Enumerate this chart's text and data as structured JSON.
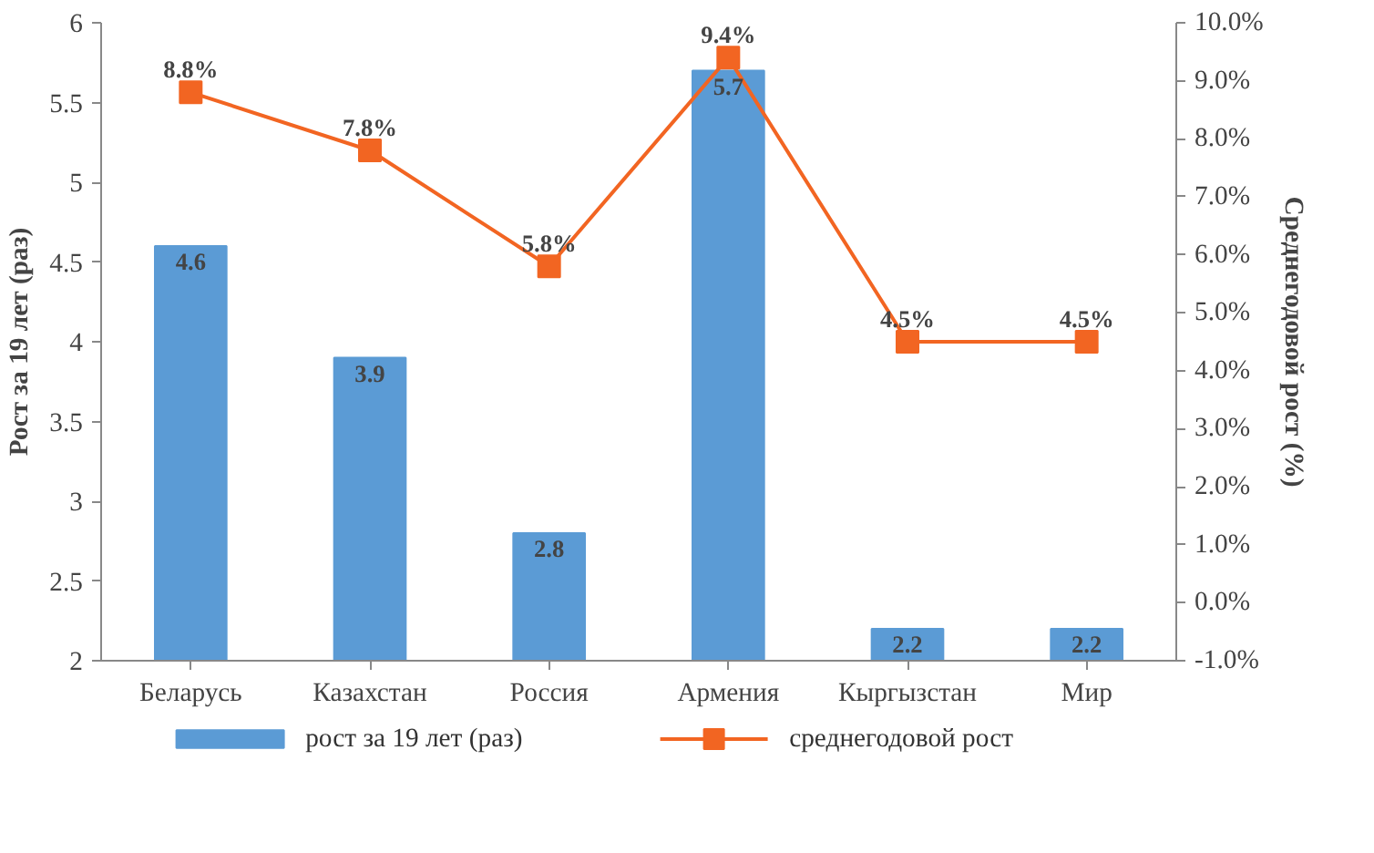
{
  "chart_data": {
    "type": "bar",
    "categories": [
      "Беларусь",
      "Казахстан",
      "Россия",
      "Армения",
      "Кыргызстан",
      "Мир"
    ],
    "ylabel": "Рост за 19 лет (раз)",
    "y2label": "Среднегодовой рост (%)",
    "ylim": [
      2,
      6
    ],
    "yticks": [
      2,
      2.5,
      3,
      3.5,
      4,
      4.5,
      5,
      5.5,
      6
    ],
    "y2lim": [
      -1,
      10
    ],
    "y2ticks": [
      {
        "value": -1,
        "label": "-1.0%"
      },
      {
        "value": 0,
        "label": "0.0%"
      },
      {
        "value": 1,
        "label": "1.0%"
      },
      {
        "value": 2,
        "label": "2.0%"
      },
      {
        "value": 3,
        "label": "3.0%"
      },
      {
        "value": 4,
        "label": "4.0%"
      },
      {
        "value": 5,
        "label": "5.0%"
      },
      {
        "value": 6,
        "label": "6.0%"
      },
      {
        "value": 7,
        "label": "7.0%"
      },
      {
        "value": 8,
        "label": "8.0%"
      },
      {
        "value": 9,
        "label": "9.0%"
      },
      {
        "value": 10,
        "label": "10.0%"
      }
    ],
    "series": [
      {
        "name": "рост за 19 лет (раз)",
        "color": "#5b9bd5",
        "values": [
          4.6,
          3.9,
          2.8,
          5.7,
          2.2,
          2.2
        ]
      },
      {
        "name": "среднегодовой рост",
        "type": "line",
        "axis": "y2",
        "color": "#f26522",
        "marker": "square",
        "values": [
          8.8,
          7.8,
          5.8,
          9.4,
          4.5,
          4.5
        ],
        "value_labels": [
          "8.8%",
          "7.8%",
          "5.8%",
          "9.4%",
          "4.5%",
          "4.5%"
        ]
      }
    ],
    "data_labels": true,
    "legend": "bottom",
    "grid": false
  }
}
